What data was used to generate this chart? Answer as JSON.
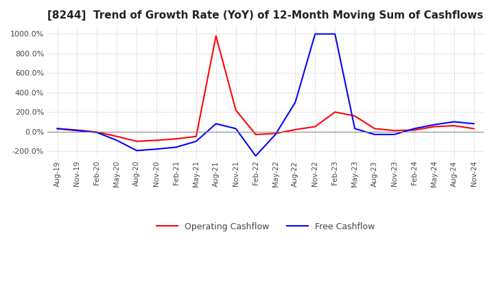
{
  "title": "[8244]  Trend of Growth Rate (YoY) of 12-Month Moving Sum of Cashflows",
  "title_fontsize": 11,
  "background_color": "#ffffff",
  "grid_color": "#b0b0b0",
  "grid_style": "dotted",
  "ylim": [
    -280,
    1080
  ],
  "yticks": [
    -200,
    0,
    200,
    400,
    600,
    800,
    1000
  ],
  "ytick_labels": [
    "-200.0%",
    "0.0%",
    "200.0%",
    "400.0%",
    "600.0%",
    "800.0%",
    "1000.0%"
  ],
  "x_labels": [
    "Aug-19",
    "Nov-19",
    "Feb-20",
    "May-20",
    "Aug-20",
    "Nov-20",
    "Feb-21",
    "May-21",
    "Aug-21",
    "Nov-21",
    "Feb-22",
    "May-22",
    "Aug-22",
    "Nov-22",
    "Feb-23",
    "May-23",
    "Aug-23",
    "Nov-23",
    "Feb-24",
    "May-24",
    "Aug-24",
    "Nov-24"
  ],
  "operating_cashflow": [
    30,
    15,
    -5,
    -50,
    -100,
    -90,
    -75,
    -50,
    980,
    220,
    -30,
    -20,
    20,
    50,
    200,
    160,
    30,
    10,
    15,
    50,
    60,
    30
  ],
  "free_cashflow": [
    30,
    10,
    -10,
    -90,
    -195,
    -180,
    -160,
    -100,
    80,
    30,
    -250,
    -30,
    300,
    1000,
    1000,
    30,
    -30,
    -30,
    30,
    70,
    100,
    80
  ],
  "op_color": "#ff0000",
  "free_color": "#0000ff",
  "legend_op": "Operating Cashflow",
  "legend_free": "Free Cashflow",
  "zero_line_color": "#888888"
}
